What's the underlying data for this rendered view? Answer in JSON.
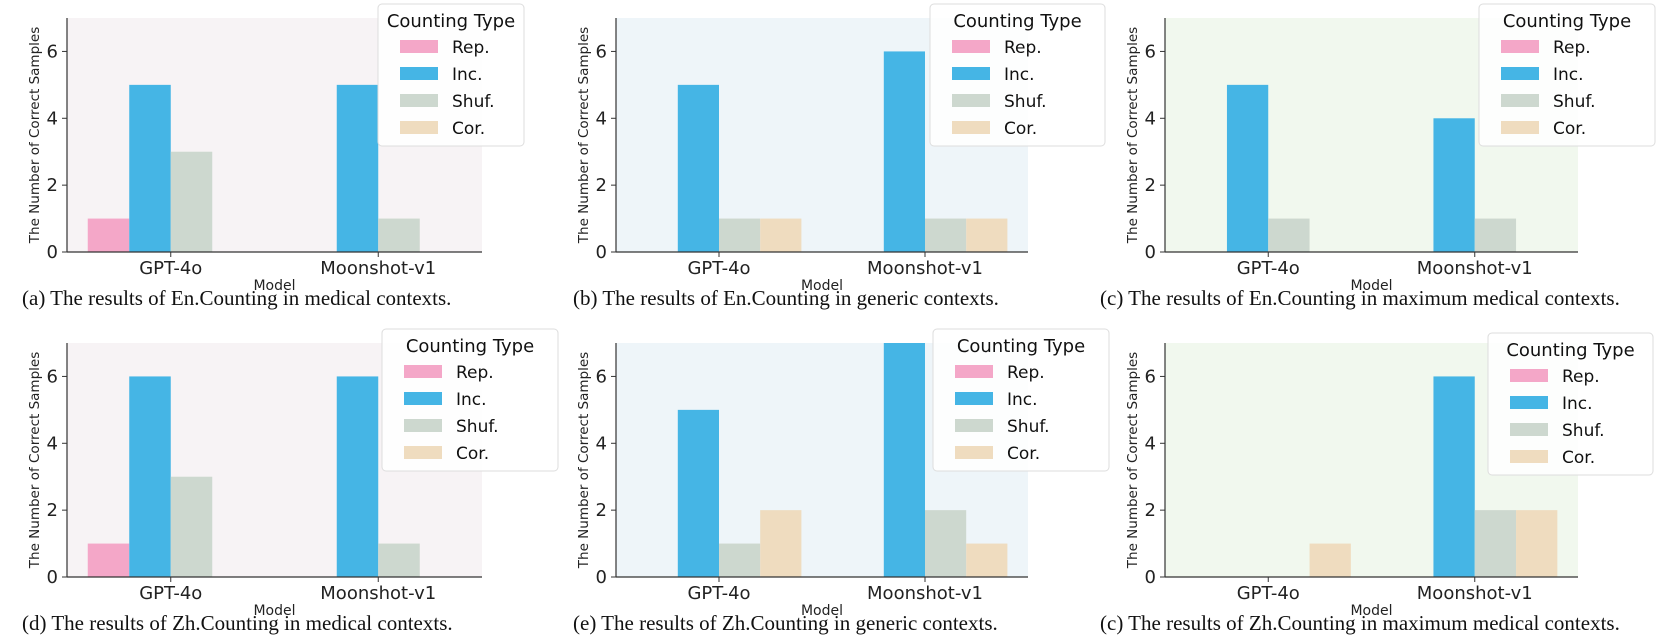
{
  "chart_data": [
    {
      "type": "bar",
      "caption": "(a) The results of En.Counting in medical contexts.",
      "xlabel": "Model",
      "ylabel": "The Number of Correct Samples",
      "categories": [
        "GPT-4o",
        "Moonshot-v1"
      ],
      "ylim": [
        0,
        7
      ],
      "yticks": [
        0,
        2,
        4,
        6
      ],
      "background": "#f7f3f5",
      "legend": {
        "title": "Counting Type",
        "placement": "top-right"
      },
      "series": [
        {
          "name": "Rep.",
          "color": "#f4a7c8",
          "values": [
            1,
            0
          ]
        },
        {
          "name": "Inc.",
          "color": "#45b5e5",
          "values": [
            5,
            5
          ]
        },
        {
          "name": "Shuf.",
          "color": "#cdd8cf",
          "values": [
            3,
            1
          ]
        },
        {
          "name": "Cor.",
          "color": "#efdcbf",
          "values": [
            0,
            0
          ]
        }
      ]
    },
    {
      "type": "bar",
      "caption": "(b) The results of En.Counting in generic contexts.",
      "xlabel": "Model",
      "ylabel": "The Number of Correct Samples",
      "categories": [
        "GPT-4o",
        "Moonshot-v1"
      ],
      "ylim": [
        0,
        7
      ],
      "yticks": [
        0,
        2,
        4,
        6
      ],
      "background": "#eef5f9",
      "legend": {
        "title": "Counting Type",
        "placement": "top-right"
      },
      "series": [
        {
          "name": "Rep.",
          "color": "#f4a7c8",
          "values": [
            0,
            0
          ]
        },
        {
          "name": "Inc.",
          "color": "#45b5e5",
          "values": [
            5,
            6
          ]
        },
        {
          "name": "Shuf.",
          "color": "#cdd8cf",
          "values": [
            1,
            1
          ]
        },
        {
          "name": "Cor.",
          "color": "#efdcbf",
          "values": [
            1,
            1
          ]
        }
      ]
    },
    {
      "type": "bar",
      "caption": "(c) The results of En.Counting in maximum medical contexts.",
      "xlabel": "Model",
      "ylabel": "The Number of Correct Samples",
      "categories": [
        "GPT-4o",
        "Moonshot-v1"
      ],
      "ylim": [
        0,
        7
      ],
      "yticks": [
        0,
        2,
        4,
        6
      ],
      "background": "#f1f8ee",
      "legend": {
        "title": "Counting Type",
        "placement": "top-right"
      },
      "series": [
        {
          "name": "Rep.",
          "color": "#f4a7c8",
          "values": [
            0,
            0
          ]
        },
        {
          "name": "Inc.",
          "color": "#45b5e5",
          "values": [
            5,
            4
          ]
        },
        {
          "name": "Shuf.",
          "color": "#cdd8cf",
          "values": [
            1,
            1
          ]
        },
        {
          "name": "Cor.",
          "color": "#efdcbf",
          "values": [
            0,
            0
          ]
        }
      ]
    },
    {
      "type": "bar",
      "caption": "(d) The results of Zh.Counting in medical contexts.",
      "xlabel": "Model",
      "ylabel": "The Number of Correct Samples",
      "categories": [
        "GPT-4o",
        "Moonshot-v1"
      ],
      "ylim": [
        0,
        7
      ],
      "yticks": [
        0,
        2,
        4,
        6
      ],
      "background": "#f7f3f5",
      "legend": {
        "title": "Counting Type",
        "placement": "top-right"
      },
      "series": [
        {
          "name": "Rep.",
          "color": "#f4a7c8",
          "values": [
            1,
            0
          ]
        },
        {
          "name": "Inc.",
          "color": "#45b5e5",
          "values": [
            6,
            6
          ]
        },
        {
          "name": "Shuf.",
          "color": "#cdd8cf",
          "values": [
            3,
            1
          ]
        },
        {
          "name": "Cor.",
          "color": "#efdcbf",
          "values": [
            0,
            0
          ]
        }
      ]
    },
    {
      "type": "bar",
      "caption": "(e) The results of Zh.Counting in generic contexts.",
      "xlabel": "Model",
      "ylabel": "The Number of Correct Samples",
      "categories": [
        "GPT-4o",
        "Moonshot-v1"
      ],
      "ylim": [
        0,
        7
      ],
      "yticks": [
        0,
        2,
        4,
        6
      ],
      "background": "#eef5f9",
      "legend": {
        "title": "Counting Type",
        "placement": "top-right"
      },
      "series": [
        {
          "name": "Rep.",
          "color": "#f4a7c8",
          "values": [
            0,
            0
          ]
        },
        {
          "name": "Inc.",
          "color": "#45b5e5",
          "values": [
            5,
            7
          ]
        },
        {
          "name": "Shuf.",
          "color": "#cdd8cf",
          "values": [
            1,
            2
          ]
        },
        {
          "name": "Cor.",
          "color": "#efdcbf",
          "values": [
            2,
            1
          ]
        }
      ]
    },
    {
      "type": "bar",
      "caption": "(c) The results of Zh.Counting in maximum medical contexts.",
      "xlabel": "Model",
      "ylabel": "The Number of Correct Samples",
      "categories": [
        "GPT-4o",
        "Moonshot-v1"
      ],
      "ylim": [
        0,
        7
      ],
      "yticks": [
        0,
        2,
        4,
        6
      ],
      "background": "#f1f8ee",
      "legend": {
        "title": "Counting Type",
        "placement": "top-right"
      },
      "series": [
        {
          "name": "Rep.",
          "color": "#f4a7c8",
          "values": [
            0,
            0
          ]
        },
        {
          "name": "Inc.",
          "color": "#45b5e5",
          "values": [
            0,
            6
          ]
        },
        {
          "name": "Shuf.",
          "color": "#cdd8cf",
          "values": [
            0,
            2
          ]
        },
        {
          "name": "Cor.",
          "color": "#efdcbf",
          "values": [
            1,
            2
          ]
        }
      ]
    }
  ]
}
